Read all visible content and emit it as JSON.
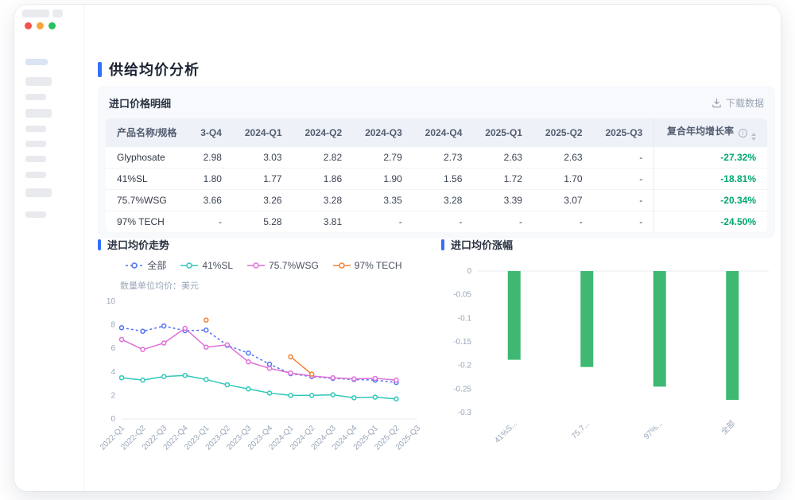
{
  "window": {
    "traffic_colors": {
      "close": "#f2544c",
      "minimize": "#f5a73b",
      "zoom": "#27c05f"
    }
  },
  "page": {
    "title": "供给均价分析",
    "accent_color": "#3370ff"
  },
  "table_card": {
    "title": "进口价格明细",
    "download_label": "下载数据",
    "columns": [
      "产品名称/规格",
      "3-Q4",
      "2024-Q1",
      "2024-Q2",
      "2024-Q3",
      "2024-Q4",
      "2025-Q1",
      "2025-Q2",
      "2025-Q3",
      "复合年均增长率"
    ],
    "rows": [
      {
        "name": "Glyphosate",
        "values": [
          "2.98",
          "3.03",
          "2.82",
          "2.79",
          "2.73",
          "2.63",
          "2.63",
          "-"
        ],
        "cagr": "-27.32%"
      },
      {
        "name": "41%SL",
        "values": [
          "1.80",
          "1.77",
          "1.86",
          "1.90",
          "1.56",
          "1.72",
          "1.70",
          "-"
        ],
        "cagr": "-18.81%"
      },
      {
        "name": "75.7%WSG",
        "values": [
          "3.66",
          "3.26",
          "3.28",
          "3.35",
          "3.28",
          "3.39",
          "3.07",
          "-"
        ],
        "cagr": "-20.34%"
      },
      {
        "name": "97% TECH",
        "values": [
          "-",
          "5.28",
          "3.81",
          "-",
          "-",
          "-",
          "-",
          "-"
        ],
        "cagr": "-24.50%"
      }
    ],
    "cagr_green": "#00a76d"
  },
  "chart_data": [
    {
      "type": "line",
      "title": "进口均价走势",
      "note": "数量单位均价：美元",
      "x": [
        "2022-Q1",
        "2022-Q2",
        "2022-Q3",
        "2022-Q4",
        "2023-Q1",
        "2023-Q2",
        "2023-Q3",
        "2023-Q4",
        "2024-Q1",
        "2024-Q2",
        "2024-Q3",
        "2024-Q4",
        "2025-Q1",
        "2025-Q2",
        "2025-Q3"
      ],
      "ylim": [
        0,
        10
      ],
      "yticks": [
        "0",
        "2",
        "4",
        "6",
        "8",
        "10"
      ],
      "legend_position": "top",
      "grid": false,
      "series": [
        {
          "name": "全部",
          "color": "#4f72f5",
          "dashed": true,
          "values": [
            7.75,
            7.45,
            7.9,
            7.5,
            7.55,
            6.25,
            5.6,
            4.65,
            3.85,
            3.6,
            3.45,
            3.35,
            3.3,
            3.1,
            null
          ]
        },
        {
          "name": "41%SL",
          "color": "#2fc7b9",
          "dashed": false,
          "values": [
            3.5,
            3.3,
            3.6,
            3.7,
            3.35,
            2.9,
            2.55,
            2.2,
            2.0,
            2.0,
            2.05,
            1.8,
            1.85,
            1.7,
            null
          ]
        },
        {
          "name": "75.7%WSG",
          "color": "#e06fd8",
          "dashed": false,
          "values": [
            6.75,
            5.9,
            6.45,
            7.7,
            6.1,
            6.3,
            4.85,
            4.3,
            3.9,
            3.65,
            3.5,
            3.4,
            3.45,
            3.3,
            null
          ]
        },
        {
          "name": "97% TECH",
          "color": "#ef8236",
          "dashed": false,
          "values": [
            null,
            null,
            null,
            null,
            8.4,
            null,
            null,
            null,
            5.28,
            3.81,
            null,
            null,
            null,
            null,
            null
          ]
        }
      ]
    },
    {
      "type": "bar",
      "title": "进口均价涨幅",
      "categories": [
        "41%S...",
        "75.7...",
        "97%...",
        "全部"
      ],
      "values": [
        -0.1881,
        -0.2034,
        -0.245,
        -0.2732
      ],
      "ylim": [
        -0.3,
        0
      ],
      "yticks": [
        "0",
        "-0.05",
        "-0.1",
        "-0.15",
        "-0.2",
        "-0.25",
        "-0.3"
      ],
      "bar_color": "#3eb873",
      "grid": false
    }
  ]
}
